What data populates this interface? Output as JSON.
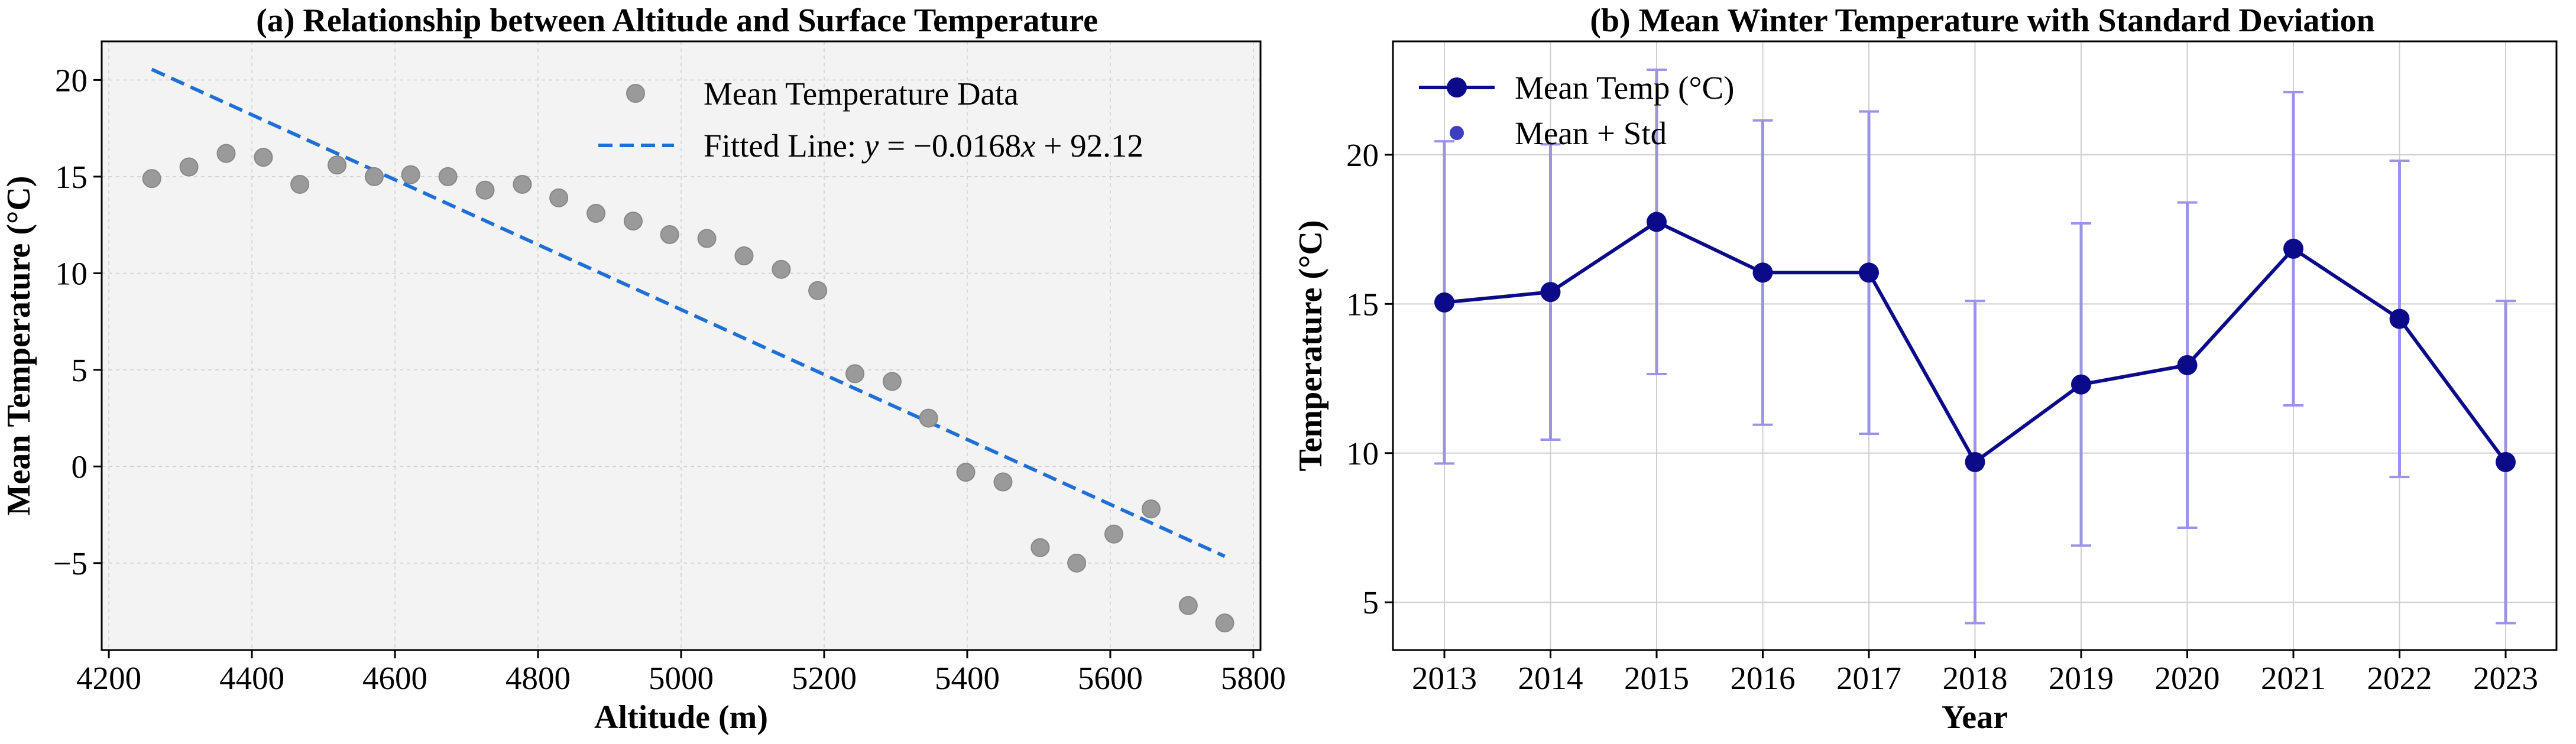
{
  "colors": {
    "scatter": "#9a9a9a",
    "fit_line": "#1f6fd6",
    "panel_a_bg": "#f3f3f3",
    "panel_b_line": "#0b0b8a",
    "panel_b_error": "#9b93e8",
    "grid": "#cfcfcf"
  },
  "chart_data": [
    {
      "type": "scatter",
      "title": "(a) Relationship between Altitude and Surface Temperature",
      "xlabel": "Altitude (m)",
      "ylabel": "Mean Temperature (°C)",
      "xlim": [
        4190,
        5810
      ],
      "ylim": [
        -9.5,
        22.0
      ],
      "xticks": [
        4200,
        4400,
        4600,
        4800,
        5000,
        5200,
        5400,
        5600,
        5800
      ],
      "yticks": [
        -5,
        0,
        5,
        10,
        15,
        20
      ],
      "grid": true,
      "legend_position": "top-right",
      "series": [
        {
          "name": "Mean Temperature Data",
          "kind": "scatter",
          "x": [
            4260,
            4312,
            4364,
            4416,
            4467,
            4519,
            4571,
            4622,
            4674,
            4726,
            4778,
            4829,
            4881,
            4933,
            4984,
            5036,
            5088,
            5140,
            5191,
            5243,
            5295,
            5346,
            5398,
            5450,
            5502,
            5553,
            5605,
            5657,
            5709,
            5760
          ],
          "y": [
            14.9,
            15.5,
            16.2,
            16.0,
            14.6,
            15.6,
            15.0,
            15.1,
            15.0,
            14.3,
            14.6,
            13.9,
            13.1,
            12.7,
            12.0,
            11.8,
            10.9,
            10.2,
            9.1,
            4.8,
            4.4,
            2.5,
            -0.3,
            -0.8,
            -4.2,
            -5.0,
            -3.5,
            -2.2,
            -7.2,
            -8.1
          ]
        },
        {
          "name": "Fitted Line",
          "kind": "line",
          "x": [
            4260,
            5760
          ],
          "y": [
            20.55,
            -4.65
          ]
        }
      ],
      "legend": {
        "scatter_label": "Mean Temperature Data",
        "line_prefix": "Fitted Line: ",
        "eq_y": "y",
        "eq_mid": " = −0.0168",
        "eq_x": "x",
        "eq_tail": " + 92.12"
      }
    },
    {
      "type": "line",
      "title": "(b) Mean Winter Temperature with Standard Deviation",
      "xlabel": "Year",
      "ylabel": "Temperature (°C)",
      "categories": [
        "2013",
        "2014",
        "2015",
        "2016",
        "2017",
        "2018",
        "2019",
        "2020",
        "2021",
        "2022",
        "2023"
      ],
      "ylim": [
        3.4,
        23.8
      ],
      "yticks": [
        5,
        10,
        15,
        20
      ],
      "grid": true,
      "legend_position": "top-left",
      "series": [
        {
          "name": "Mean Temp (°C)",
          "values": [
            15.05,
            15.4,
            17.75,
            16.05,
            16.05,
            9.7,
            12.3,
            12.95,
            16.85,
            14.5,
            9.7
          ],
          "std": [
            5.4,
            4.95,
            5.1,
            5.1,
            5.4,
            5.4,
            5.4,
            5.45,
            5.25,
            5.3,
            5.4
          ]
        }
      ],
      "legend": {
        "line_label": "Mean Temp (°C)",
        "marker_label": "Mean + Std"
      }
    }
  ]
}
